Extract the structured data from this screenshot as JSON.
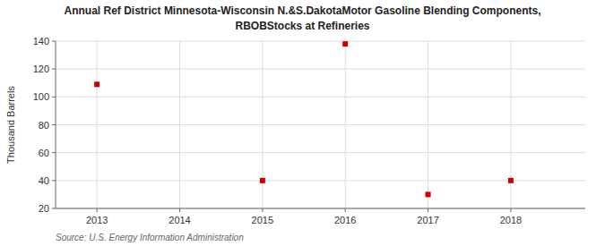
{
  "chart_data": {
    "type": "scatter",
    "title": "Annual Ref District Minnesota-Wisconsin N.&S.DakotaMotor Gasoline Blending Components,",
    "subtitle": "RBOBStocks at Refineries",
    "ylabel": "Thousand Barrels",
    "source": "Source: U.S. Energy Information Administration",
    "x": [
      2013,
      2015,
      2016,
      2017,
      2018
    ],
    "values": [
      109,
      40,
      138,
      30,
      40
    ],
    "color": "#CC0000",
    "marker": "square",
    "xlim": [
      2012.5,
      2018.9
    ],
    "ylim": [
      20,
      140
    ],
    "xticks": [
      2013,
      2014,
      2015,
      2016,
      2017,
      2018
    ],
    "yticks": [
      20,
      40,
      60,
      80,
      100,
      120,
      140
    ],
    "grid": true
  }
}
